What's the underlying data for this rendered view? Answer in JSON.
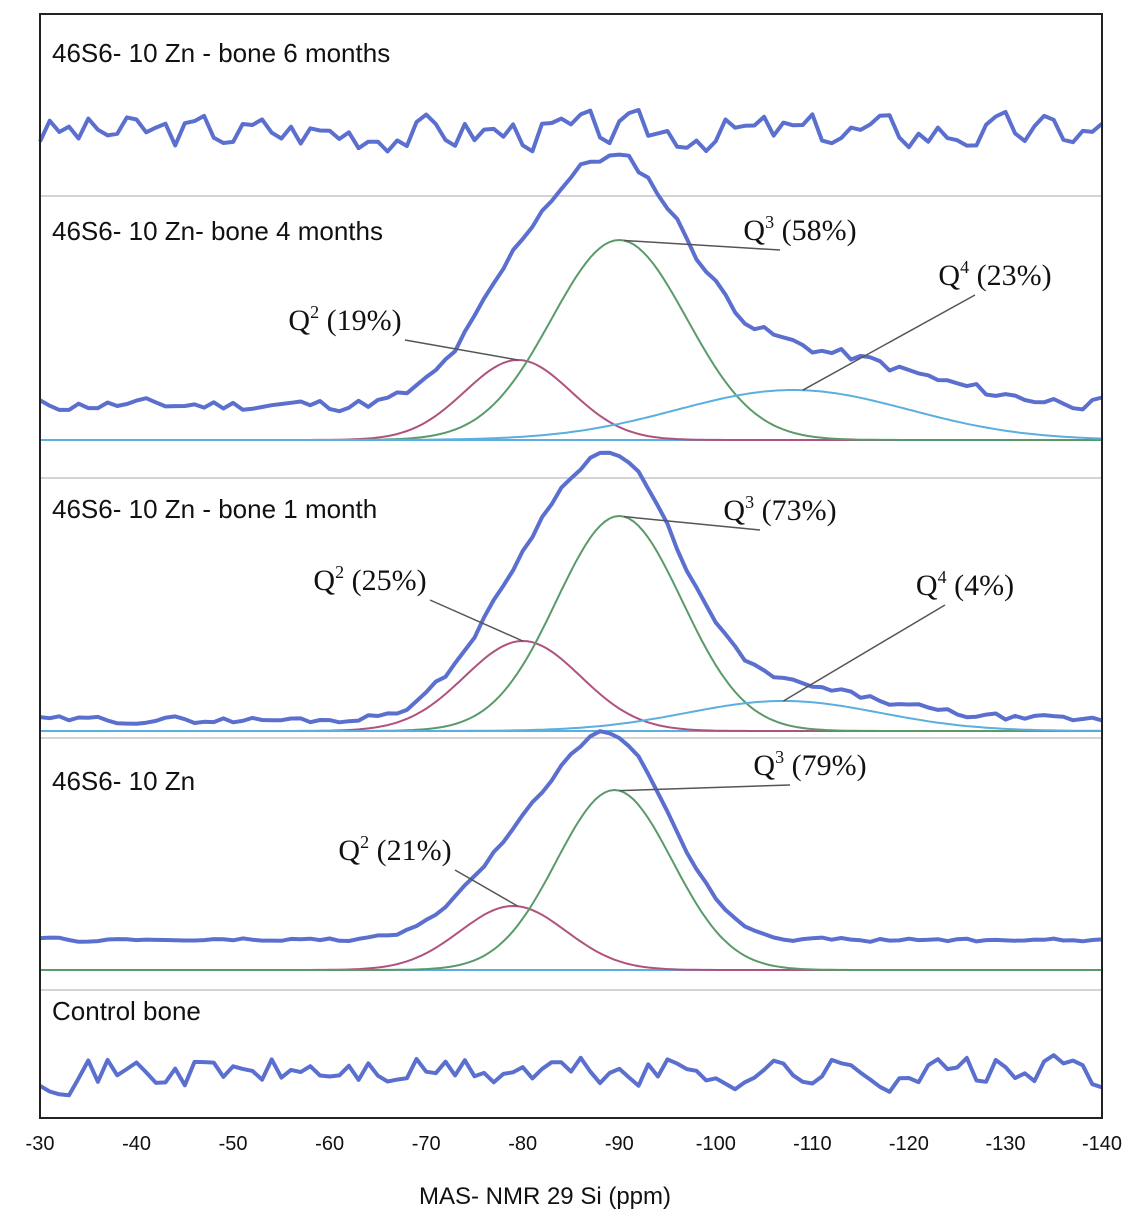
{
  "chart_data": {
    "type": "line",
    "xlabel": "MAS- NMR 29 Si (ppm)",
    "xlim": [
      -30,
      -140
    ],
    "x_ticks": [
      "-30",
      "-40",
      "-50",
      "-60",
      "-70",
      "-80",
      "-90",
      "-100",
      "-110",
      "-120",
      "-130",
      "-140"
    ],
    "grid": false,
    "colors": {
      "spectrum": "#5b6fcf",
      "Q2": "#b0527f",
      "Q3": "#5a9a6a",
      "Q4": "#5aaee0",
      "frame": "#222222",
      "separator": "#bbbbbb",
      "leader": "#555555"
    },
    "panels": [
      {
        "label": "46S6- 10 Zn - bone 6 months",
        "series": [],
        "annotations": []
      },
      {
        "label": "46S6- 10 Zn- bone 4 months",
        "series": [
          {
            "name": "Q2",
            "center_ppm": -79.5,
            "rel_height": 0.16,
            "width_ppm": 5.5
          },
          {
            "name": "Q3",
            "center_ppm": -90,
            "rel_height": 0.4,
            "width_ppm": 7
          },
          {
            "name": "Q4",
            "center_ppm": -108,
            "rel_height": 0.1,
            "width_ppm": 12
          }
        ],
        "annotations": [
          {
            "q": "Q",
            "sup": "2",
            "text": " (19%)",
            "ppm": -79.5
          },
          {
            "q": "Q",
            "sup": "3",
            "text": " (58%)",
            "ppm": -90.5
          },
          {
            "q": "Q",
            "sup": "4",
            "text": " (23%)",
            "ppm": -109
          }
        ]
      },
      {
        "label": "46S6- 10 Zn - bone 1 month",
        "series": [
          {
            "name": "Q2",
            "center_ppm": -80,
            "rel_height": 0.18,
            "width_ppm": 6
          },
          {
            "name": "Q3",
            "center_ppm": -90,
            "rel_height": 0.43,
            "width_ppm": 6.5
          },
          {
            "name": "Q4",
            "center_ppm": -107,
            "rel_height": 0.06,
            "width_ppm": 10
          }
        ],
        "annotations": [
          {
            "q": "Q",
            "sup": "2",
            "text": " (25%)",
            "ppm": -80
          },
          {
            "q": "Q",
            "sup": "3",
            "text": " (73%)",
            "ppm": -90.5
          },
          {
            "q": "Q",
            "sup": "4",
            "text": " (4%)",
            "ppm": -107
          }
        ]
      },
      {
        "label": "46S6- 10 Zn",
        "series": [
          {
            "name": "Q2",
            "center_ppm": -79,
            "rel_height": 0.16,
            "width_ppm": 5.5
          },
          {
            "name": "Q3",
            "center_ppm": -89.5,
            "rel_height": 0.45,
            "width_ppm": 6
          }
        ],
        "annotations": [
          {
            "q": "Q",
            "sup": "2",
            "text": " (21%)",
            "ppm": -79.5
          },
          {
            "q": "Q",
            "sup": "3",
            "text": " (79%)",
            "ppm": -90
          }
        ]
      },
      {
        "label": "Control bone",
        "series": [],
        "annotations": []
      }
    ]
  }
}
